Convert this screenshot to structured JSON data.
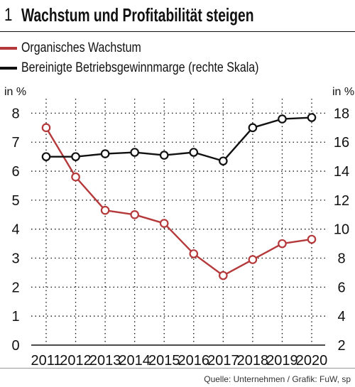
{
  "title": {
    "number": "1",
    "text": "Wachstum und Profitabilität steigen"
  },
  "source": "Quelle: Unternehmen / Grafik: FuW, sp",
  "colors": {
    "organic": "#b5393b",
    "margin": "#111111",
    "grid": "#111111"
  },
  "chart_data": {
    "type": "line",
    "x": [
      "2011",
      "2012",
      "2013",
      "2014",
      "2015",
      "2016",
      "2017",
      "2018",
      "2019",
      "2020"
    ],
    "series": [
      {
        "name": "Organisches Wachstum",
        "axis": "left",
        "color": "#b5393b",
        "values": [
          7.5,
          5.8,
          4.65,
          4.5,
          4.2,
          3.15,
          2.4,
          2.95,
          3.5,
          3.65
        ]
      },
      {
        "name": "Bereinigte Betriebsgewinnmarge (rechte Skala)",
        "axis": "right",
        "color": "#111111",
        "values": [
          15.0,
          15.0,
          15.2,
          15.3,
          15.1,
          15.3,
          14.7,
          17.0,
          17.6,
          17.7
        ]
      }
    ],
    "left_axis": {
      "unit": "in %",
      "ticks": [
        "0",
        "1",
        "2",
        "3",
        "4",
        "5",
        "6",
        "7",
        "8"
      ],
      "ylim": [
        0,
        8.5
      ]
    },
    "right_axis": {
      "unit": "in %",
      "ticks": [
        "2",
        "4",
        "6",
        "8",
        "10",
        "12",
        "14",
        "16",
        "18"
      ],
      "ylim": [
        2,
        19
      ]
    },
    "grid": "dotted",
    "legend": "top-left"
  }
}
